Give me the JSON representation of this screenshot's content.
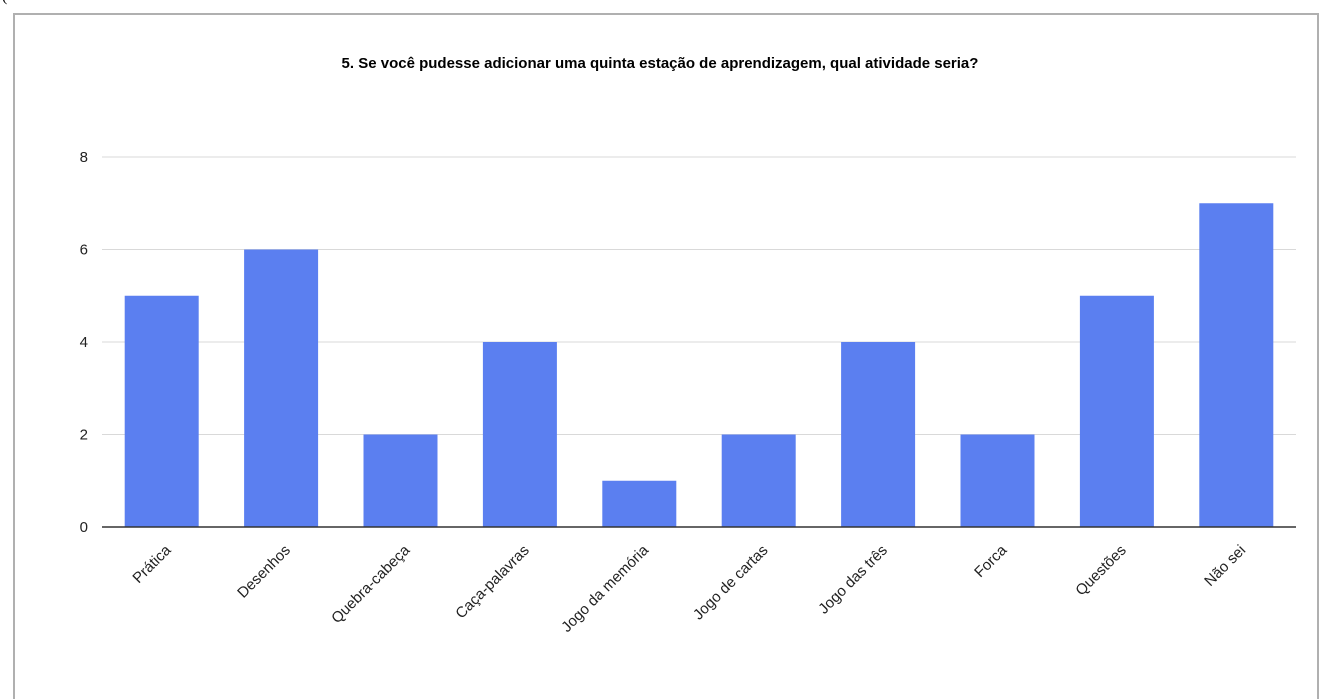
{
  "header_fragment": "(",
  "chart_data": {
    "type": "bar",
    "title": "5. Se você pudesse adicionar uma quinta estação de aprendizagem, qual atividade seria?",
    "xlabel": "",
    "ylabel": "",
    "categories": [
      "Prática",
      "Desenhos",
      "Quebra-cabeça",
      "Caça-palavras",
      "Jogo da memória",
      "Jogo de cartas",
      "Jogo das três",
      "Forca",
      "Questões",
      "Não sei"
    ],
    "values": [
      5,
      6,
      2,
      4,
      1,
      2,
      4,
      2,
      5,
      7
    ],
    "ylim": [
      0,
      8
    ],
    "yticks": [
      0,
      2,
      4,
      6,
      8
    ],
    "grid": true,
    "legend": "none",
    "bar_color": "#5b7ff0",
    "grid_color": "#d9d9d9",
    "axis_color": "#333333"
  }
}
